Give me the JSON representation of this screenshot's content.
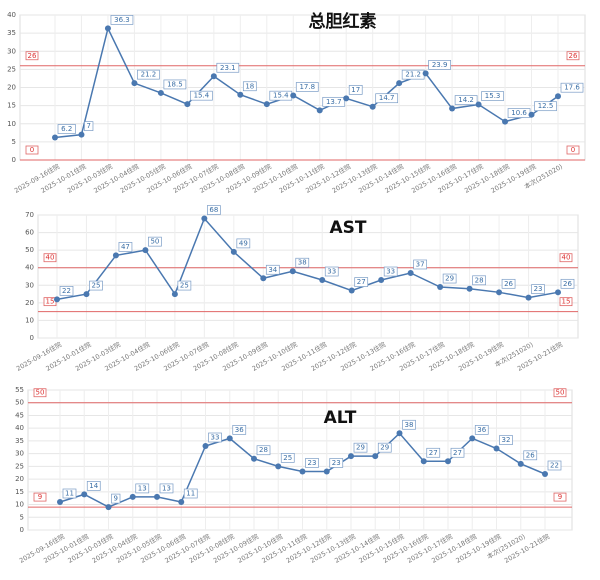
{
  "chart_data": [
    {
      "type": "line",
      "title": "总胆红素",
      "color": "#4a78b0",
      "grid": true,
      "ref_color": "#e06666",
      "categories": [
        "2025-09-16住院",
        "2025-10-01住院",
        "2025-10-03住院",
        "2025-10-04住院",
        "2025-10-05住院",
        "2025-10-06住院",
        "2025-10-07住院",
        "2025-10-08住院",
        "2025-10-09住院",
        "2025-10-10住院",
        "2025-10-11住院",
        "2025-10-12住院",
        "2025-10-13住院",
        "2025-10-14住院",
        "2025-10-15住院",
        "2025-10-16住院",
        "2025-10-17住院",
        "2025-10-18住院",
        "2025-10-19住院",
        "本次(251020)"
      ],
      "values": [
        6.2,
        7,
        36.3,
        21.2,
        18.5,
        15.4,
        23.1,
        18,
        15.4,
        17.8,
        13.7,
        17,
        14.7,
        21.2,
        23.9,
        14.2,
        15.3,
        10.6,
        12.5,
        17.6
      ],
      "ylim": [
        0,
        40
      ],
      "yticks": [
        0,
        5,
        10,
        15,
        20,
        25,
        30,
        35,
        40
      ],
      "ref_lines": [
        26,
        0
      ]
    },
    {
      "type": "line",
      "title": "AST",
      "color": "#4a78b0",
      "grid": true,
      "ref_color": "#e06666",
      "categories": [
        "2025-09-16住院",
        "2025-10-01住院",
        "2025-10-03住院",
        "2025-10-04住院",
        "2025-10-06住院",
        "2025-10-07住院",
        "2025-10-08住院",
        "2025-10-09住院",
        "2025-10-10住院",
        "2025-10-11住院",
        "2025-10-12住院",
        "2025-10-13住院",
        "2025-10-16住院",
        "2025-10-17住院",
        "2025-10-18住院",
        "2025-10-19住院",
        "本次(251020)",
        "2025-10-21住院"
      ],
      "values": [
        22,
        25,
        47,
        50,
        25,
        68,
        49,
        34,
        38,
        33,
        27,
        33,
        37,
        29,
        28,
        26,
        23,
        26
      ],
      "ylim": [
        0,
        70
      ],
      "yticks": [
        0,
        10,
        20,
        30,
        40,
        50,
        60,
        70
      ],
      "ref_lines": [
        40,
        15
      ]
    },
    {
      "type": "line",
      "title": "ALT",
      "color": "#4a78b0",
      "grid": true,
      "ref_color": "#e06666",
      "categories": [
        "2025-09-16住院",
        "2025-10-01住院",
        "2025-10-03住院",
        "2025-10-04住院",
        "2025-10-05住院",
        "2025-10-06住院",
        "2025-10-07住院",
        "2025-10-08住院",
        "2025-10-09住院",
        "2025-10-10住院",
        "2025-10-11住院",
        "2025-10-12住院",
        "2025-10-13住院",
        "2025-10-14住院",
        "2025-10-15住院",
        "2025-10-16住院",
        "2025-10-17住院",
        "2025-10-18住院",
        "2025-10-19住院",
        "本次(251020)",
        "2025-10-21住院"
      ],
      "values": [
        11,
        14,
        9,
        13,
        13,
        11,
        33,
        36,
        28,
        25,
        23,
        23,
        29,
        29,
        38,
        27,
        27,
        36,
        32,
        26,
        22
      ],
      "ylim": [
        0,
        55
      ],
      "yticks": [
        0,
        5,
        10,
        15,
        20,
        25,
        30,
        35,
        40,
        45,
        50,
        55
      ],
      "ref_lines": [
        50,
        9
      ]
    }
  ]
}
